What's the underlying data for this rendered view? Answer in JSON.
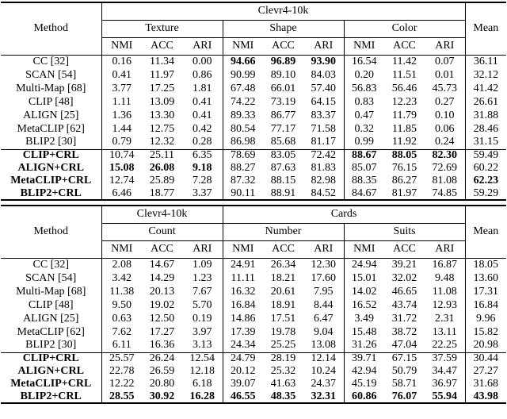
{
  "tables": [
    {
      "method_label": "Method",
      "mean_label": "Mean",
      "dataset_header": [
        {
          "label": "Clevr4-10k"
        }
      ],
      "groups": [
        "Texture",
        "Shape",
        "Color"
      ],
      "metrics": [
        "NMI",
        "ACC",
        "ARI"
      ],
      "rows": [
        {
          "method": "CC [32]",
          "values": [
            "0.16",
            "11.34",
            "0.00",
            "94.66",
            "96.89",
            "93.90",
            "16.54",
            "11.42",
            "0.07"
          ],
          "mean": "36.11",
          "bold": [
            3,
            4,
            5
          ]
        },
        {
          "method": "SCAN [54]",
          "values": [
            "0.41",
            "11.97",
            "0.86",
            "90.99",
            "89.10",
            "84.03",
            "0.20",
            "11.51",
            "0.01"
          ],
          "mean": "32.12"
        },
        {
          "method": "Multi-Map [68]",
          "values": [
            "3.77",
            "17.25",
            "1.81",
            "67.48",
            "66.01",
            "57.40",
            "56.83",
            "56.46",
            "45.73"
          ],
          "mean": "41.42"
        },
        {
          "method": "CLIP [48]",
          "values": [
            "1.11",
            "13.09",
            "0.41",
            "74.22",
            "73.19",
            "64.15",
            "0.83",
            "12.23",
            "0.27"
          ],
          "mean": "26.61"
        },
        {
          "method": "ALIGN [25]",
          "values": [
            "1.36",
            "13.30",
            "0.41",
            "89.33",
            "86.77",
            "83.37",
            "0.47",
            "11.79",
            "0.10"
          ],
          "mean": "31.88"
        },
        {
          "method": "MetaCLIP [62]",
          "values": [
            "1.44",
            "12.75",
            "0.42",
            "80.54",
            "77.17",
            "71.58",
            "0.32",
            "11.85",
            "0.06"
          ],
          "mean": "28.46"
        },
        {
          "method": "BLIP2 [30]",
          "values": [
            "0.79",
            "12.32",
            "0.28",
            "86.98",
            "85.68",
            "81.17",
            "0.99",
            "11.92",
            "0.24"
          ],
          "mean": "31.15"
        }
      ],
      "crl_rows": [
        {
          "method": "CLIP+CRL",
          "bold_method": true,
          "values": [
            "10.74",
            "25.11",
            "6.35",
            "78.69",
            "83.05",
            "72.42",
            "88.67",
            "88.05",
            "82.30"
          ],
          "mean": "59.49",
          "bold": [
            6,
            7,
            8
          ]
        },
        {
          "method": "ALIGN+CRL",
          "bold_method": true,
          "values": [
            "15.08",
            "26.08",
            "9.18",
            "88.27",
            "87.63",
            "81.83",
            "85.07",
            "76.15",
            "72.69"
          ],
          "mean": "60.22",
          "bold": [
            0,
            1,
            2
          ]
        },
        {
          "method": "MetaCLIP+CRL",
          "bold_method": true,
          "values": [
            "12.74",
            "25.89",
            "7.28",
            "87.32",
            "88.15",
            "82.98",
            "88.35",
            "86.27",
            "81.08"
          ],
          "mean": "62.23",
          "bold_mean": true
        },
        {
          "method": "BLIP2+CRL",
          "bold_method": true,
          "values": [
            "6.46",
            "18.77",
            "3.37",
            "90.11",
            "88.91",
            "84.52",
            "84.67",
            "81.97",
            "74.85"
          ],
          "mean": "59.29"
        }
      ]
    },
    {
      "method_label": "Method",
      "mean_label": "Mean",
      "dataset_header": [
        {
          "label": "Clevr4-10k"
        },
        {
          "label": "Cards"
        }
      ],
      "groups": [
        "Count",
        "Number",
        "Suits"
      ],
      "metrics": [
        "NMI",
        "ACC",
        "ARI"
      ],
      "rows": [
        {
          "method": "CC [32]",
          "values": [
            "2.08",
            "14.67",
            "1.09",
            "24.91",
            "26.34",
            "12.30",
            "24.94",
            "39.21",
            "16.87"
          ],
          "mean": "18.05"
        },
        {
          "method": "SCAN [54]",
          "values": [
            "3.42",
            "14.29",
            "1.23",
            "11.11",
            "18.21",
            "17.60",
            "15.01",
            "32.02",
            "9.48"
          ],
          "mean": "13.60"
        },
        {
          "method": "Multi-Map [68]",
          "values": [
            "11.38",
            "20.13",
            "7.67",
            "16.32",
            "20.61",
            "7.95",
            "14.02",
            "46.65",
            "11.08"
          ],
          "mean": "17.31"
        },
        {
          "method": "CLIP [48]",
          "values": [
            "9.50",
            "19.02",
            "5.70",
            "16.84",
            "18.91",
            "8.44",
            "16.52",
            "43.74",
            "12.93"
          ],
          "mean": "16.84"
        },
        {
          "method": "ALIGN [25]",
          "values": [
            "0.63",
            "12.50",
            "0.19",
            "14.86",
            "17.51",
            "6.47",
            "3.49",
            "31.72",
            "2.31"
          ],
          "mean": "9.96"
        },
        {
          "method": "MetaCLIP [62]",
          "values": [
            "7.62",
            "17.27",
            "3.97",
            "17.39",
            "19.78",
            "9.04",
            "15.48",
            "38.72",
            "13.11"
          ],
          "mean": "15.82"
        },
        {
          "method": "BLIP2 [30]",
          "values": [
            "6.11",
            "16.36",
            "3.13",
            "24.34",
            "25.25",
            "13.08",
            "31.26",
            "47.04",
            "22.25"
          ],
          "mean": "20.98"
        }
      ],
      "crl_rows": [
        {
          "method": "CLIP+CRL",
          "bold_method": true,
          "values": [
            "25.57",
            "26.24",
            "12.54",
            "24.79",
            "28.19",
            "12.14",
            "39.71",
            "67.15",
            "37.59"
          ],
          "mean": "30.44"
        },
        {
          "method": "ALIGN+CRL",
          "bold_method": true,
          "values": [
            "22.78",
            "26.59",
            "12.18",
            "20.12",
            "25.32",
            "10.24",
            "42.94",
            "50.79",
            "34.47"
          ],
          "mean": "27.27"
        },
        {
          "method": "MetaCLIP+CRL",
          "bold_method": true,
          "values": [
            "12.22",
            "20.80",
            "6.18",
            "39.07",
            "41.63",
            "24.37",
            "45.19",
            "58.71",
            "36.97"
          ],
          "mean": "31.68"
        },
        {
          "method": "BLIP2+CRL",
          "bold_method": true,
          "values": [
            "28.55",
            "30.92",
            "16.28",
            "46.55",
            "48.35",
            "32.31",
            "60.86",
            "76.07",
            "55.94"
          ],
          "mean": "43.98",
          "bold": [
            0,
            1,
            2,
            3,
            4,
            5,
            6,
            7,
            8
          ],
          "bold_mean": true
        }
      ]
    }
  ]
}
